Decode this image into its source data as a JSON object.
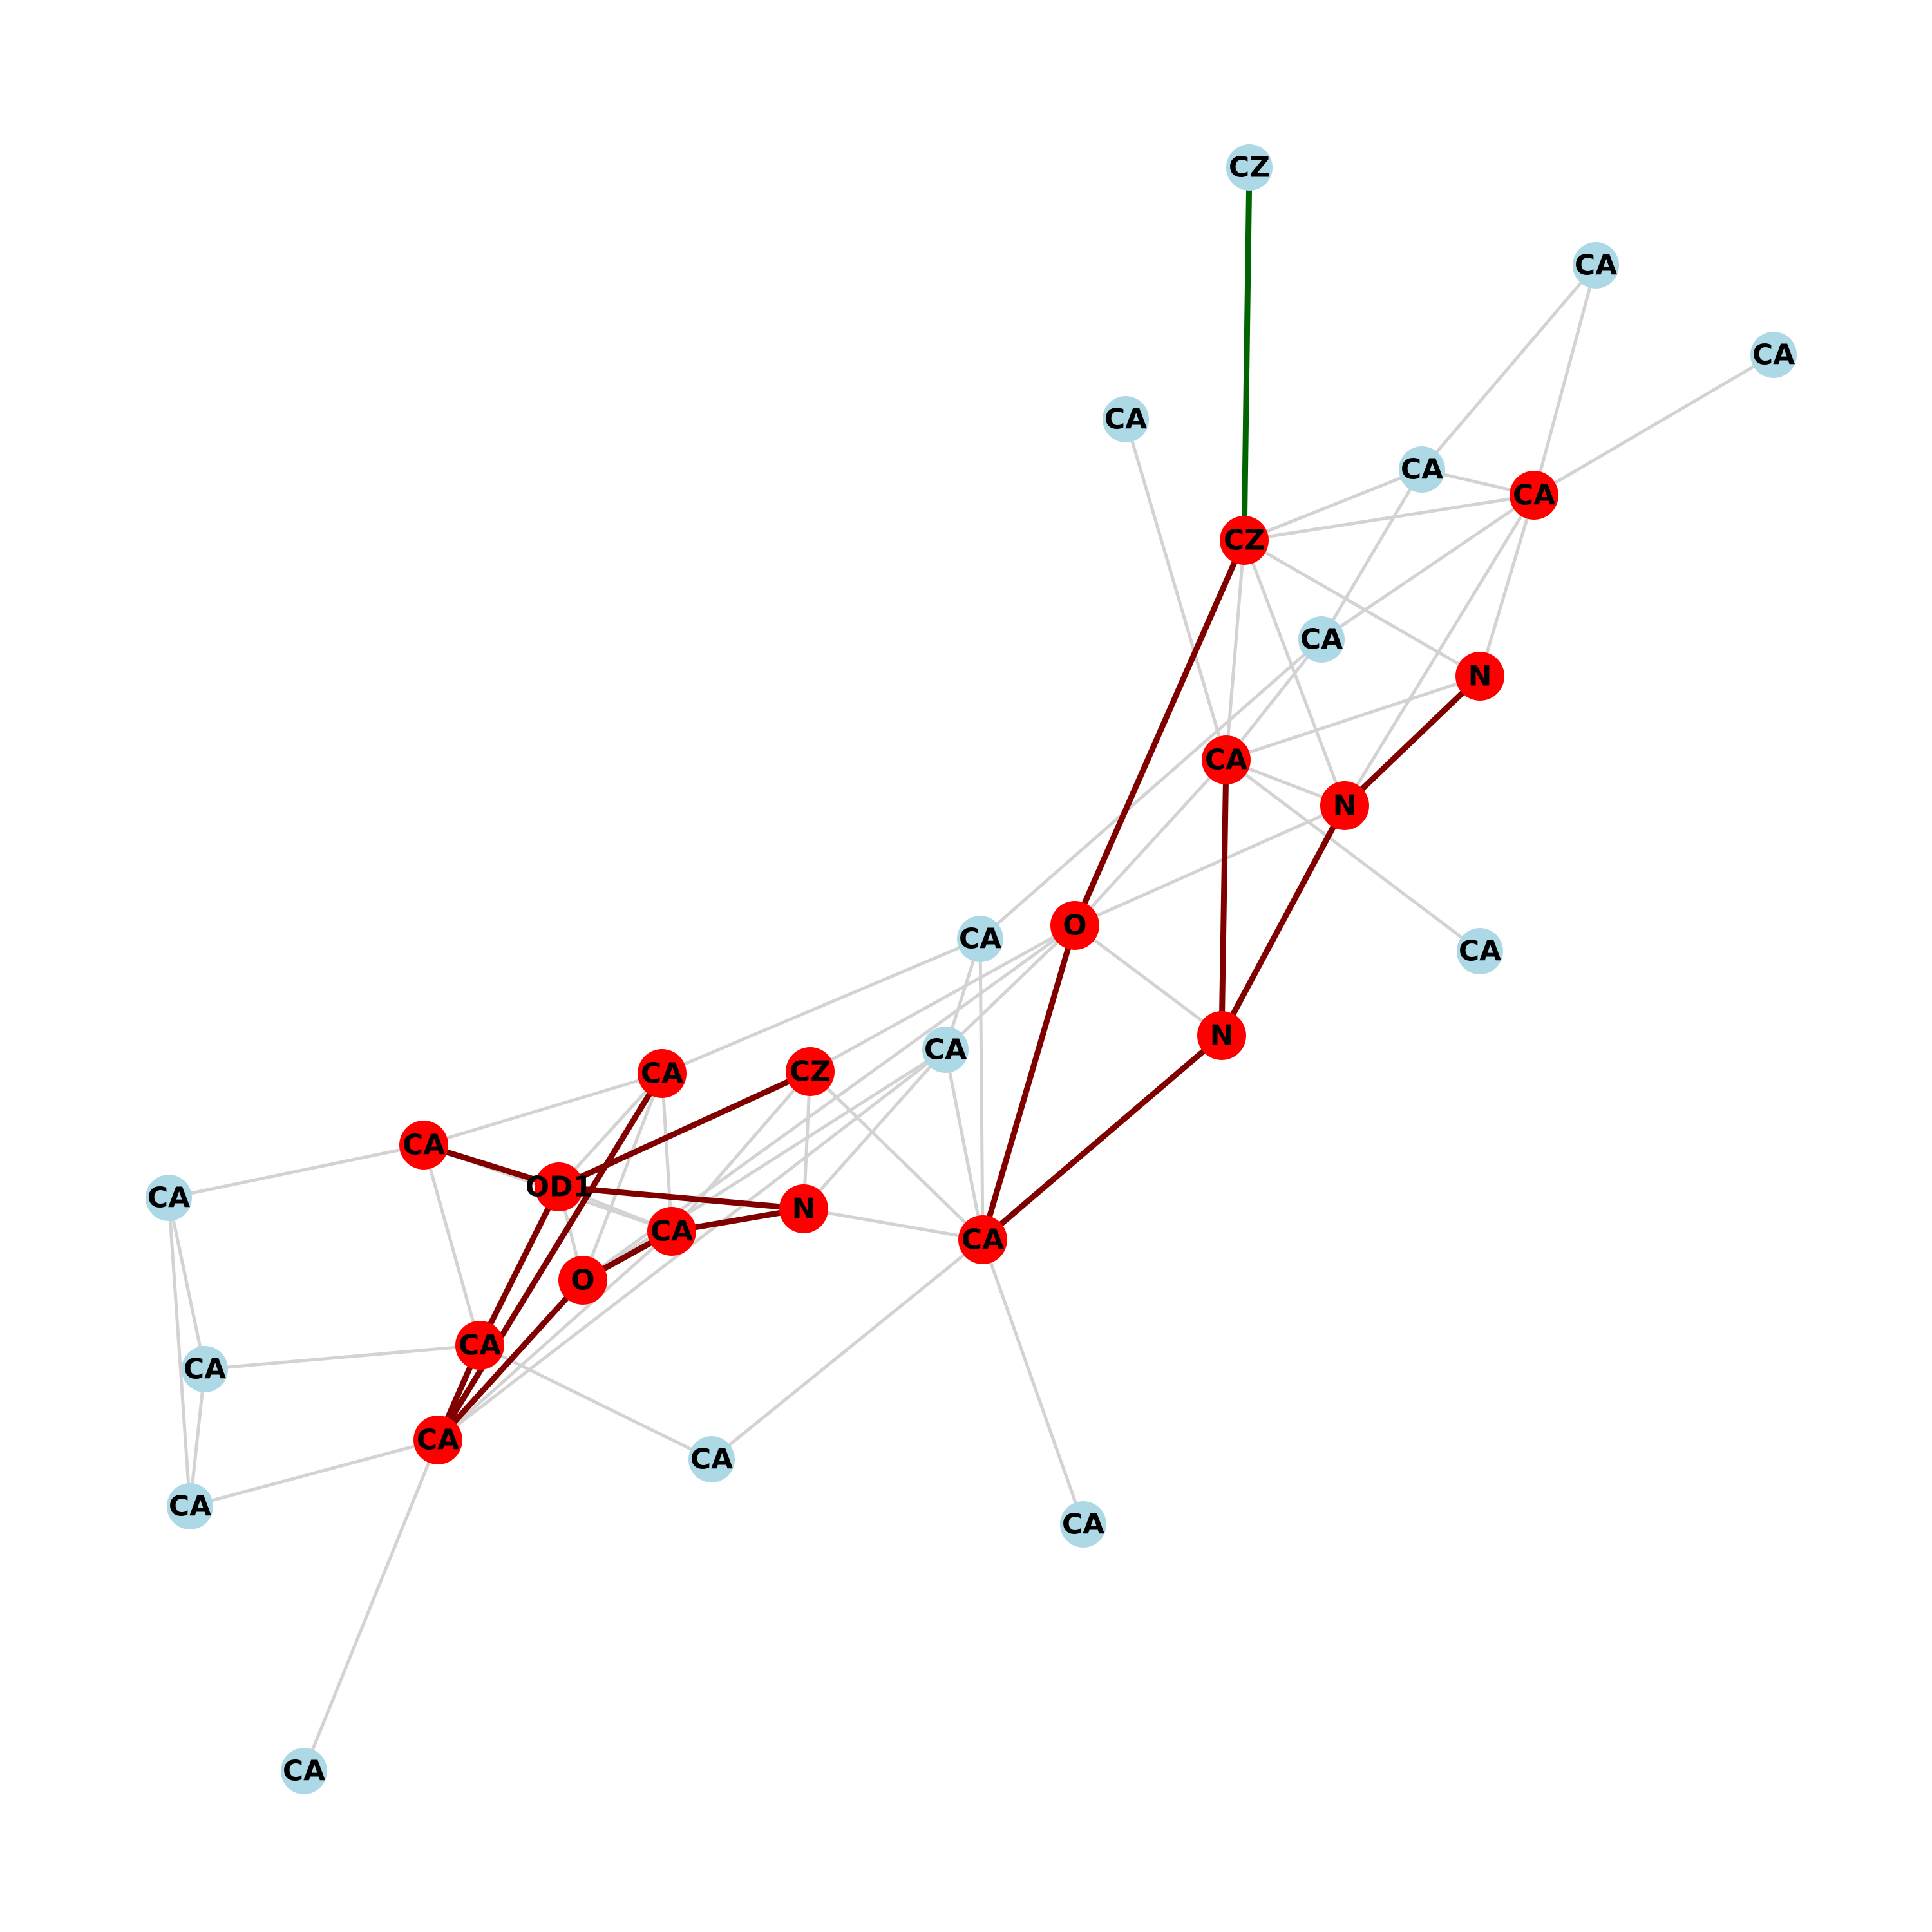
{
  "colors": {
    "background": "#ffffff",
    "node_default": "#add8e6",
    "node_highlight": "#ff0000",
    "edge_default": "#d3d3d3",
    "edge_highlight": "#800000",
    "edge_focus": "#006400",
    "label": "#000000"
  },
  "graph": {
    "nodes": [
      {
        "id": "n0",
        "label": "CZ",
        "group": "default"
      },
      {
        "id": "n1",
        "label": "CA",
        "group": "default"
      },
      {
        "id": "n2",
        "label": "CA",
        "group": "default"
      },
      {
        "id": "n3",
        "label": "CA",
        "group": "default"
      },
      {
        "id": "n4",
        "label": "CA",
        "group": "default"
      },
      {
        "id": "n5",
        "label": "CA",
        "group": "highlight"
      },
      {
        "id": "n6",
        "label": "CZ",
        "group": "highlight"
      },
      {
        "id": "n7",
        "label": "CA",
        "group": "default"
      },
      {
        "id": "n8",
        "label": "N",
        "group": "highlight"
      },
      {
        "id": "n9",
        "label": "CA",
        "group": "highlight"
      },
      {
        "id": "n10",
        "label": "N",
        "group": "highlight"
      },
      {
        "id": "n11",
        "label": "CA",
        "group": "default"
      },
      {
        "id": "n12",
        "label": "O",
        "group": "highlight"
      },
      {
        "id": "n13",
        "label": "CA",
        "group": "default"
      },
      {
        "id": "n14",
        "label": "N",
        "group": "highlight"
      },
      {
        "id": "n15",
        "label": "CA",
        "group": "default"
      },
      {
        "id": "n16",
        "label": "CA",
        "group": "highlight"
      },
      {
        "id": "n17",
        "label": "CZ",
        "group": "highlight"
      },
      {
        "id": "n18",
        "label": "CA",
        "group": "highlight"
      },
      {
        "id": "n19",
        "label": "CA",
        "group": "default"
      },
      {
        "id": "n20",
        "label": "OD1",
        "group": "highlight"
      },
      {
        "id": "n21",
        "label": "N",
        "group": "highlight"
      },
      {
        "id": "n22",
        "label": "CA",
        "group": "highlight"
      },
      {
        "id": "n23",
        "label": "CA",
        "group": "highlight"
      },
      {
        "id": "n24",
        "label": "O",
        "group": "highlight"
      },
      {
        "id": "n25",
        "label": "CA",
        "group": "highlight"
      },
      {
        "id": "n26",
        "label": "CA",
        "group": "default"
      },
      {
        "id": "n27",
        "label": "CA",
        "group": "highlight"
      },
      {
        "id": "n28",
        "label": "CA",
        "group": "default"
      },
      {
        "id": "n29",
        "label": "CA",
        "group": "default"
      },
      {
        "id": "n30",
        "label": "CA",
        "group": "default"
      },
      {
        "id": "n31",
        "label": "CA",
        "group": "default"
      },
      {
        "id": "n32",
        "label": "CA",
        "group": "default"
      }
    ],
    "edges": [
      {
        "source": "n0",
        "target": "n6",
        "type": "focus"
      },
      {
        "source": "n6",
        "target": "n12",
        "type": "highlight"
      },
      {
        "source": "n8",
        "target": "n10",
        "type": "highlight"
      },
      {
        "source": "n10",
        "target": "n14",
        "type": "highlight"
      },
      {
        "source": "n9",
        "target": "n14",
        "type": "highlight"
      },
      {
        "source": "n14",
        "target": "n22",
        "type": "highlight"
      },
      {
        "source": "n12",
        "target": "n22",
        "type": "highlight"
      },
      {
        "source": "n17",
        "target": "n20",
        "type": "highlight"
      },
      {
        "source": "n18",
        "target": "n20",
        "type": "highlight"
      },
      {
        "source": "n20",
        "target": "n21",
        "type": "highlight"
      },
      {
        "source": "n21",
        "target": "n23",
        "type": "highlight"
      },
      {
        "source": "n23",
        "target": "n24",
        "type": "highlight"
      },
      {
        "source": "n16",
        "target": "n27",
        "type": "highlight"
      },
      {
        "source": "n20",
        "target": "n25",
        "type": "highlight"
      },
      {
        "source": "n24",
        "target": "n27",
        "type": "highlight"
      },
      {
        "source": "n25",
        "target": "n27",
        "type": "highlight"
      },
      {
        "source": "n1",
        "target": "n4",
        "type": "default"
      },
      {
        "source": "n1",
        "target": "n5",
        "type": "default"
      },
      {
        "source": "n2",
        "target": "n5",
        "type": "default"
      },
      {
        "source": "n4",
        "target": "n5",
        "type": "default"
      },
      {
        "source": "n4",
        "target": "n6",
        "type": "default"
      },
      {
        "source": "n4",
        "target": "n7",
        "type": "default"
      },
      {
        "source": "n5",
        "target": "n6",
        "type": "default"
      },
      {
        "source": "n5",
        "target": "n7",
        "type": "default"
      },
      {
        "source": "n5",
        "target": "n8",
        "type": "default"
      },
      {
        "source": "n5",
        "target": "n10",
        "type": "default"
      },
      {
        "source": "n6",
        "target": "n8",
        "type": "default"
      },
      {
        "source": "n6",
        "target": "n9",
        "type": "default"
      },
      {
        "source": "n6",
        "target": "n10",
        "type": "default"
      },
      {
        "source": "n3",
        "target": "n9",
        "type": "default"
      },
      {
        "source": "n7",
        "target": "n9",
        "type": "default"
      },
      {
        "source": "n7",
        "target": "n13",
        "type": "default"
      },
      {
        "source": "n8",
        "target": "n9",
        "type": "default"
      },
      {
        "source": "n9",
        "target": "n10",
        "type": "default"
      },
      {
        "source": "n9",
        "target": "n11",
        "type": "default"
      },
      {
        "source": "n9",
        "target": "n12",
        "type": "default"
      },
      {
        "source": "n10",
        "target": "n12",
        "type": "default"
      },
      {
        "source": "n12",
        "target": "n14",
        "type": "default"
      },
      {
        "source": "n12",
        "target": "n15",
        "type": "default"
      },
      {
        "source": "n12",
        "target": "n17",
        "type": "default"
      },
      {
        "source": "n12",
        "target": "n24",
        "type": "default"
      },
      {
        "source": "n13",
        "target": "n15",
        "type": "default"
      },
      {
        "source": "n13",
        "target": "n22",
        "type": "default"
      },
      {
        "source": "n13",
        "target": "n16",
        "type": "default"
      },
      {
        "source": "n15",
        "target": "n21",
        "type": "default"
      },
      {
        "source": "n15",
        "target": "n22",
        "type": "default"
      },
      {
        "source": "n15",
        "target": "n24",
        "type": "default"
      },
      {
        "source": "n15",
        "target": "n27",
        "type": "default"
      },
      {
        "source": "n16",
        "target": "n18",
        "type": "default"
      },
      {
        "source": "n16",
        "target": "n20",
        "type": "default"
      },
      {
        "source": "n16",
        "target": "n23",
        "type": "default"
      },
      {
        "source": "n17",
        "target": "n21",
        "type": "default"
      },
      {
        "source": "n17",
        "target": "n22",
        "type": "default"
      },
      {
        "source": "n17",
        "target": "n23",
        "type": "default"
      },
      {
        "source": "n18",
        "target": "n19",
        "type": "default"
      },
      {
        "source": "n18",
        "target": "n23",
        "type": "default"
      },
      {
        "source": "n18",
        "target": "n25",
        "type": "default"
      },
      {
        "source": "n19",
        "target": "n26",
        "type": "default"
      },
      {
        "source": "n19",
        "target": "n28",
        "type": "default"
      },
      {
        "source": "n20",
        "target": "n23",
        "type": "default"
      },
      {
        "source": "n20",
        "target": "n24",
        "type": "default"
      },
      {
        "source": "n21",
        "target": "n22",
        "type": "default"
      },
      {
        "source": "n22",
        "target": "n29",
        "type": "default"
      },
      {
        "source": "n22",
        "target": "n30",
        "type": "default"
      },
      {
        "source": "n23",
        "target": "n27",
        "type": "default"
      },
      {
        "source": "n24",
        "target": "n16",
        "type": "default"
      },
      {
        "source": "n25",
        "target": "n26",
        "type": "default"
      },
      {
        "source": "n25",
        "target": "n29",
        "type": "default"
      },
      {
        "source": "n26",
        "target": "n28",
        "type": "default"
      },
      {
        "source": "n27",
        "target": "n28",
        "type": "default"
      },
      {
        "source": "n27",
        "target": "n31",
        "type": "default"
      }
    ]
  }
}
